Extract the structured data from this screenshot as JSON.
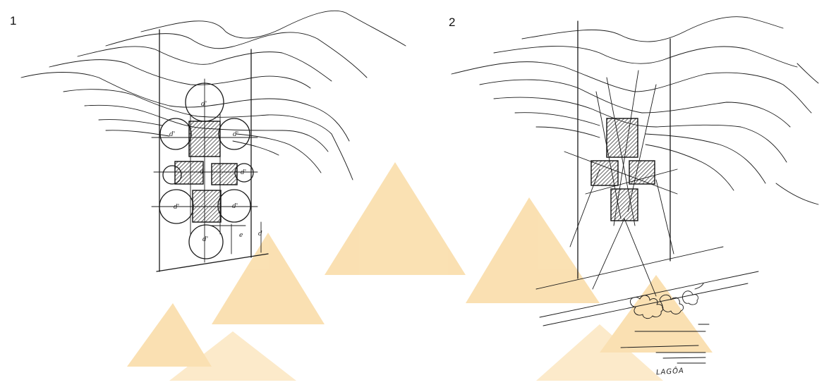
{
  "sketches": [
    {
      "number": "1"
    },
    {
      "number": "2",
      "annotation": "LAGÔA"
    }
  ],
  "dimension_labels": [
    "d'",
    "d'",
    "d'",
    "d'",
    "d'",
    "d'",
    "d'",
    "d'",
    "e",
    "d"
  ],
  "colors": {
    "ink": "#1a1a1a",
    "watermark": "#f9d9a0",
    "background": "#ffffff"
  }
}
